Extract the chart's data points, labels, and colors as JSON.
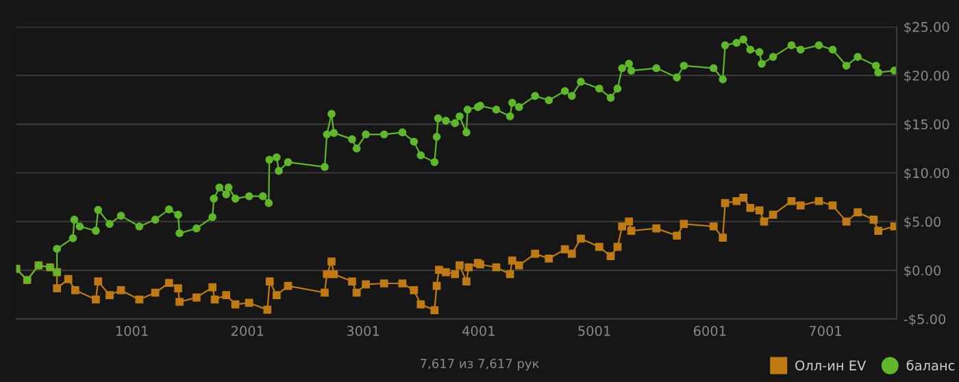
{
  "chart_data": {
    "type": "line",
    "xlim": [
      1,
      7617
    ],
    "ylim": [
      -5,
      25
    ],
    "xticks": [
      1001,
      2001,
      3001,
      4001,
      5001,
      6001,
      7001
    ],
    "yticks": [
      {
        "value": -5,
        "label": "-$5.00"
      },
      {
        "value": 0,
        "label": "$0.00"
      },
      {
        "value": 5,
        "label": "$5.00"
      },
      {
        "value": 10,
        "label": "$10.00"
      },
      {
        "value": 15,
        "label": "$15.00"
      },
      {
        "value": 20,
        "label": "$20.00"
      },
      {
        "value": 25,
        "label": "$25.00"
      }
    ],
    "grid": "y",
    "legend": "bottom right",
    "line_style": "solid",
    "annotations": [
      "7,617 из 7,617 рук"
    ],
    "series": [
      {
        "name": "Олл-ин EV",
        "color": "#c07a14",
        "marker": "square",
        "x": [
          1,
          95,
          194,
          293,
          353,
          353,
          451,
          511,
          689,
          709,
          808,
          906,
          1065,
          1203,
          1322,
          1401,
          1413,
          1560,
          1698,
          1718,
          1817,
          1896,
          2015,
          2173,
          2193,
          2253,
          2352,
          2669,
          2688,
          2728,
          2748,
          2906,
          2945,
          3025,
          3183,
          3341,
          3441,
          3500,
          3619,
          3638,
          3658,
          3717,
          3796,
          3836,
          3895,
          3915,
          3994,
          4014,
          4153,
          4272,
          4291,
          4350,
          4489,
          4608,
          4747,
          4807,
          4885,
          5044,
          5143,
          5202,
          5242,
          5301,
          5321,
          5538,
          5716,
          5776,
          6033,
          6113,
          6133,
          6232,
          6291,
          6351,
          6430,
          6470,
          6548,
          6707,
          6786,
          6944,
          7063,
          7182,
          7280,
          7418,
          7458,
          7597
        ],
        "values": [
          0.15,
          -1.0,
          0.5,
          0.3,
          -0.2,
          -1.85,
          -0.9,
          -2.05,
          -3.0,
          -1.15,
          -2.55,
          -2.05,
          -3.0,
          -2.3,
          -1.3,
          -1.85,
          -3.25,
          -2.8,
          -1.75,
          -3.0,
          -2.55,
          -3.5,
          -3.35,
          -4.05,
          -1.15,
          -2.55,
          -1.6,
          -2.3,
          -0.4,
          0.9,
          -0.4,
          -1.15,
          -2.3,
          -1.45,
          -1.35,
          -1.35,
          -2.05,
          -3.5,
          -4.1,
          -1.6,
          0.05,
          -0.2,
          -0.4,
          0.5,
          -1.15,
          0.3,
          0.75,
          0.6,
          0.3,
          -0.4,
          1.0,
          0.5,
          1.7,
          1.2,
          2.15,
          1.7,
          3.25,
          2.4,
          1.45,
          2.4,
          4.5,
          5.0,
          4.05,
          4.3,
          3.55,
          4.75,
          4.5,
          3.35,
          6.9,
          7.1,
          7.45,
          6.4,
          6.15,
          5.0,
          5.7,
          7.1,
          6.65,
          7.1,
          6.65,
          5.0,
          5.95,
          5.2,
          4.05,
          4.5
        ]
      },
      {
        "name": "баланс",
        "color": "#5fb72a",
        "marker": "circle",
        "x": [
          1,
          95,
          194,
          293,
          353,
          353,
          491,
          503,
          550,
          689,
          709,
          808,
          906,
          1065,
          1203,
          1322,
          1401,
          1413,
          1560,
          1698,
          1710,
          1758,
          1817,
          1837,
          1896,
          2015,
          2134,
          2185,
          2190,
          2253,
          2272,
          2352,
          2669,
          2688,
          2728,
          2748,
          2906,
          2945,
          3025,
          3183,
          3341,
          3441,
          3500,
          3619,
          3638,
          3650,
          3717,
          3796,
          3836,
          3895,
          3905,
          3994,
          4014,
          4153,
          4272,
          4291,
          4350,
          4489,
          4608,
          4747,
          4807,
          4885,
          5044,
          5143,
          5202,
          5242,
          5301,
          5321,
          5538,
          5716,
          5776,
          6033,
          6113,
          6133,
          6232,
          6291,
          6351,
          6430,
          6450,
          6548,
          6707,
          6786,
          6944,
          7063,
          7182,
          7280,
          7438,
          7458,
          7597
        ],
        "values": [
          0.15,
          -1.0,
          0.5,
          0.3,
          -0.2,
          2.2,
          3.3,
          5.2,
          4.5,
          4.05,
          6.2,
          4.75,
          5.6,
          4.5,
          5.2,
          6.25,
          5.7,
          3.8,
          4.3,
          5.45,
          7.35,
          8.5,
          7.8,
          8.5,
          7.35,
          7.6,
          7.6,
          6.9,
          11.35,
          11.6,
          10.2,
          11.1,
          10.6,
          13.95,
          16.05,
          14.1,
          13.45,
          12.5,
          13.95,
          13.95,
          14.15,
          13.2,
          11.8,
          11.1,
          13.7,
          15.6,
          15.35,
          15.1,
          15.8,
          14.15,
          16.5,
          16.75,
          16.9,
          16.5,
          15.8,
          17.2,
          16.75,
          17.9,
          17.45,
          18.4,
          17.9,
          19.35,
          18.65,
          17.7,
          18.65,
          20.75,
          21.2,
          20.5,
          20.75,
          19.8,
          21.0,
          20.75,
          19.6,
          23.1,
          23.35,
          23.7,
          22.65,
          22.4,
          21.2,
          21.9,
          23.1,
          22.65,
          23.1,
          22.65,
          21.0,
          21.9,
          21.0,
          20.3,
          20.5
        ]
      }
    ]
  }
}
